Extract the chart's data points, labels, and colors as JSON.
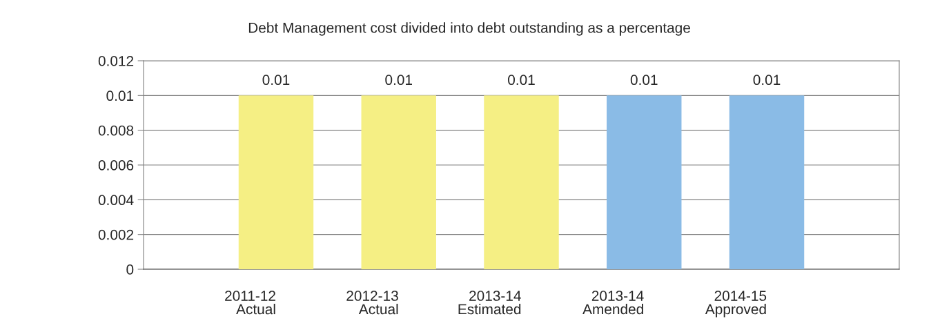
{
  "chart_data": {
    "type": "bar",
    "title": "Debt Management cost divided into debt outstanding as a percentage",
    "categories": [
      "2011-12\nActual",
      "2012-13\nActual",
      "2013-14\nEstimated",
      "2013-14\nAmended",
      "2014-15\nApproved"
    ],
    "values": [
      0.01,
      0.01,
      0.01,
      0.01,
      0.01
    ],
    "colors": [
      "#f5ef84",
      "#f5ef84",
      "#f5ef84",
      "#8abbe6",
      "#8abbe6"
    ],
    "ylim": [
      0,
      0.012
    ],
    "yticks": [
      0,
      0.002,
      0.004,
      0.006,
      0.008,
      0.01,
      0.012
    ],
    "grid": "y",
    "data_labels": true,
    "legend": false
  }
}
